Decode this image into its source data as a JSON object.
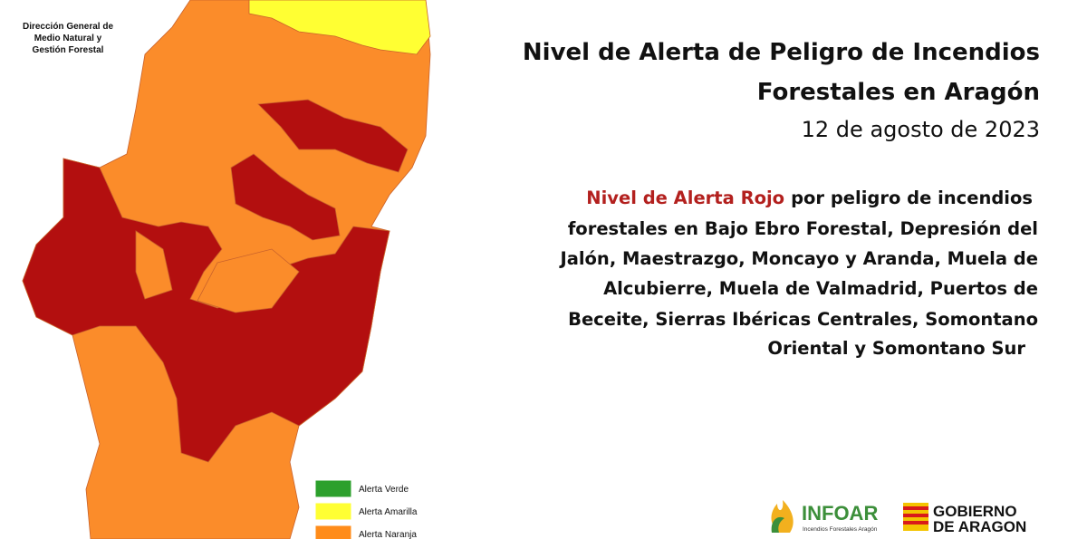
{
  "agency": {
    "lines": [
      "Dirección General de",
      "Medio Natural y",
      "Gestión Forestal"
    ]
  },
  "header": {
    "title_lines": [
      "Nivel de Alerta de Peligro de Incendios",
      "Forestales en Aragón"
    ],
    "date": "12 de agosto de 2023"
  },
  "description": {
    "highlight": "Nivel de Alerta Rojo",
    "lines": [
      "por peligro de incendios",
      "forestales en Bajo Ebro Forestal, Depresión del",
      "Jalón, Maestrazgo, Moncayo y Aranda, Muela de",
      "Alcubierre, Muela de Valmadrid, Puertos de",
      "Beceite, Sierras Ibéricas Centrales, Somontano",
      "Oriental y Somontano Sur"
    ]
  },
  "legend": [
    {
      "label": "Alerta Verde",
      "color": "#2ca02c"
    },
    {
      "label": "Alerta Amarilla",
      "color": "#ffff33"
    },
    {
      "label": "Alerta Naranja",
      "color": "#ff8c1a"
    }
  ],
  "logos": {
    "infoar": "INFOAR",
    "infoar_sub": "Incendios Forestales Aragón",
    "gobierno_lines": [
      "GOBIERNO",
      "DE ARAGON"
    ]
  }
}
